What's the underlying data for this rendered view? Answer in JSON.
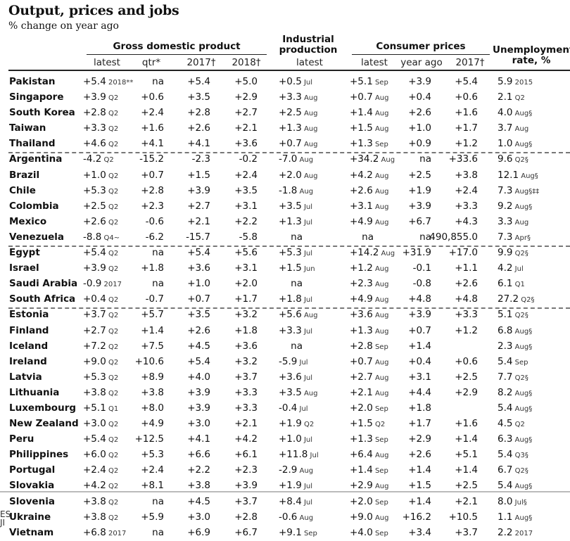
{
  "title": "Output, prices and jobs",
  "subtitle": "% change on year ago",
  "groups": {
    "gdp": "Gross domestic product",
    "industrial": [
      "Industrial",
      "production"
    ],
    "cpi": "Consumer prices",
    "unemp": [
      "Unemployment",
      "rate, %"
    ]
  },
  "subheaders": {
    "gdp_latest": "latest",
    "gdp_qtr": "qtr*",
    "gdp_2017": "2017†",
    "gdp_2018": "2018†",
    "ip_latest": "latest",
    "cpi_latest": "latest",
    "cpi_yearago": "year ago",
    "cpi_2017": "2017†"
  },
  "edge_text": [
    "ES",
    "JI"
  ],
  "rows": [
    {
      "name": "Pakistan",
      "gdp": "+5.4",
      "gdp_s": "2018**",
      "qtr": "na",
      "g17": "+5.4",
      "g18": "+5.0",
      "ip": "+0.5",
      "ip_s": "Jul",
      "cpi": "+5.1",
      "cpi_s": "Sep",
      "ya": "+3.9",
      "c17": "+5.4",
      "un": "5.9",
      "un_s": "2015",
      "dash": false
    },
    {
      "name": "Singapore",
      "gdp": "+3.9",
      "gdp_s": "Q2",
      "qtr": "+0.6",
      "g17": "+3.5",
      "g18": "+2.9",
      "ip": "+3.3",
      "ip_s": "Aug",
      "cpi": "+0.7",
      "cpi_s": "Aug",
      "ya": "+0.4",
      "c17": "+0.6",
      "un": "2.1",
      "un_s": "Q2",
      "dash": false
    },
    {
      "name": "South Korea",
      "gdp": "+2.8",
      "gdp_s": "Q2",
      "qtr": "+2.4",
      "g17": "+2.8",
      "g18": "+2.7",
      "ip": "+2.5",
      "ip_s": "Aug",
      "cpi": "+1.4",
      "cpi_s": "Aug",
      "ya": "+2.6",
      "c17": "+1.6",
      "un": "4.0",
      "un_s": "Aug§",
      "dash": false
    },
    {
      "name": "Taiwan",
      "gdp": "+3.3",
      "gdp_s": "Q2",
      "qtr": "+1.6",
      "g17": "+2.6",
      "g18": "+2.1",
      "ip": "+1.3",
      "ip_s": "Aug",
      "cpi": "+1.5",
      "cpi_s": "Aug",
      "ya": "+1.0",
      "c17": "+1.7",
      "un": "3.7",
      "un_s": "Aug",
      "dash": false
    },
    {
      "name": "Thailand",
      "gdp": "+4.6",
      "gdp_s": "Q2",
      "qtr": "+4.1",
      "g17": "+4.1",
      "g18": "+3.6",
      "ip": "+0.7",
      "ip_s": "Aug",
      "cpi": "+1.3",
      "cpi_s": "Sep",
      "ya": "+0.9",
      "c17": "+1.2",
      "un": "1.0",
      "un_s": "Aug§",
      "dash": true
    },
    {
      "name": "Argentina",
      "gdp": "-4.2",
      "gdp_s": "Q2",
      "qtr": "-15.2",
      "g17": "-2.3",
      "g18": "-0.2",
      "ip": "-7.0",
      "ip_s": "Aug",
      "cpi": "+34.2",
      "cpi_s": "Aug",
      "ya": "na",
      "c17": "+33.6",
      "un": "9.6",
      "un_s": "Q2§",
      "dash": false
    },
    {
      "name": "Brazil",
      "gdp": "+1.0",
      "gdp_s": "Q2",
      "qtr": "+0.7",
      "g17": "+1.5",
      "g18": "+2.4",
      "ip": "+2.0",
      "ip_s": "Aug",
      "cpi": "+4.2",
      "cpi_s": "Aug",
      "ya": "+2.5",
      "c17": "+3.8",
      "un": "12.1",
      "un_s": "Aug§",
      "dash": false
    },
    {
      "name": "Chile",
      "gdp": "+5.3",
      "gdp_s": "Q2",
      "qtr": "+2.8",
      "g17": "+3.9",
      "g18": "+3.5",
      "ip": "-1.8",
      "ip_s": "Aug",
      "cpi": "+2.6",
      "cpi_s": "Aug",
      "ya": "+1.9",
      "c17": "+2.4",
      "un": "7.3",
      "un_s": "Aug§‡‡",
      "dash": false
    },
    {
      "name": "Colombia",
      "gdp": "+2.5",
      "gdp_s": "Q2",
      "qtr": "+2.3",
      "g17": "+2.7",
      "g18": "+3.1",
      "ip": "+3.5",
      "ip_s": "Jul",
      "cpi": "+3.1",
      "cpi_s": "Aug",
      "ya": "+3.9",
      "c17": "+3.3",
      "un": "9.2",
      "un_s": "Aug§",
      "dash": false
    },
    {
      "name": "Mexico",
      "gdp": "+2.6",
      "gdp_s": "Q2",
      "qtr": "-0.6",
      "g17": "+2.1",
      "g18": "+2.2",
      "ip": "+1.3",
      "ip_s": "Jul",
      "cpi": "+4.9",
      "cpi_s": "Aug",
      "ya": "+6.7",
      "c17": "+4.3",
      "un": "3.3",
      "un_s": "Aug",
      "dash": false
    },
    {
      "name": "Venezuela",
      "gdp": "-8.8",
      "gdp_s": "Q4~",
      "qtr": "-6.2",
      "g17": "-15.7",
      "g18": "-5.8",
      "ip": "na",
      "ip_s": "",
      "cpi": "na",
      "cpi_s": "",
      "ya": "na",
      "c17": "490,855.0",
      "un": "7.3",
      "un_s": "Apr§",
      "dash": true
    },
    {
      "name": "Egypt",
      "gdp": "+5.4",
      "gdp_s": "Q2",
      "qtr": "na",
      "g17": "+5.4",
      "g18": "+5.6",
      "ip": "+5.3",
      "ip_s": "Jul",
      "cpi": "+14.2",
      "cpi_s": "Aug",
      "ya": "+31.9",
      "c17": "+17.0",
      "un": "9.9",
      "un_s": "Q2§",
      "dash": false
    },
    {
      "name": "Israel",
      "gdp": "+3.9",
      "gdp_s": "Q2",
      "qtr": "+1.8",
      "g17": "+3.6",
      "g18": "+3.1",
      "ip": "+1.5",
      "ip_s": "Jun",
      "cpi": "+1.2",
      "cpi_s": "Aug",
      "ya": "-0.1",
      "c17": "+1.1",
      "un": "4.2",
      "un_s": "Jul",
      "dash": false
    },
    {
      "name": "Saudi Arabia",
      "gdp": "-0.9",
      "gdp_s": "2017",
      "qtr": "na",
      "g17": "+1.0",
      "g18": "+2.0",
      "ip": "na",
      "ip_s": "",
      "cpi": "+2.3",
      "cpi_s": "Aug",
      "ya": "-0.8",
      "c17": "+2.6",
      "un": "6.1",
      "un_s": "Q1",
      "dash": false
    },
    {
      "name": "South Africa",
      "gdp": "+0.4",
      "gdp_s": "Q2",
      "qtr": "-0.7",
      "g17": "+0.7",
      "g18": "+1.7",
      "ip": "+1.8",
      "ip_s": "Jul",
      "cpi": "+4.9",
      "cpi_s": "Aug",
      "ya": "+4.8",
      "c17": "+4.8",
      "un": "27.2",
      "un_s": "Q2§",
      "dash": true
    },
    {
      "name": "Estonia",
      "gdp": "+3.7",
      "gdp_s": "Q2",
      "qtr": "+5.7",
      "g17": "+3.5",
      "g18": "+3.2",
      "ip": "+5.6",
      "ip_s": "Aug",
      "cpi": "+3.6",
      "cpi_s": "Aug",
      "ya": "+3.9",
      "c17": "+3.3",
      "un": "5.1",
      "un_s": "Q2§",
      "dash": false
    },
    {
      "name": "Finland",
      "gdp": "+2.7",
      "gdp_s": "Q2",
      "qtr": "+1.4",
      "g17": "+2.6",
      "g18": "+1.8",
      "ip": "+3.3",
      "ip_s": "Jul",
      "cpi": "+1.3",
      "cpi_s": "Aug",
      "ya": "+0.7",
      "c17": "+1.2",
      "un": "6.8",
      "un_s": "Aug§",
      "dash": false
    },
    {
      "name": "Iceland",
      "gdp": "+7.2",
      "gdp_s": "Q2",
      "qtr": "+7.5",
      "g17": "+4.5",
      "g18": "+3.6",
      "ip": "na",
      "ip_s": "",
      "cpi": "+2.8",
      "cpi_s": "Sep",
      "ya": "+1.4",
      "c17": "",
      "un": "2.3",
      "un_s": "Aug§",
      "dash": false
    },
    {
      "name": "Ireland",
      "gdp": "+9.0",
      "gdp_s": "Q2",
      "qtr": "+10.6",
      "g17": "+5.4",
      "g18": "+3.2",
      "ip": "-5.9",
      "ip_s": "Jul",
      "cpi": "+0.7",
      "cpi_s": "Aug",
      "ya": "+0.4",
      "c17": "+0.6",
      "un": "5.4",
      "un_s": "Sep",
      "dash": false
    },
    {
      "name": "Latvia",
      "gdp": "+5.3",
      "gdp_s": "Q2",
      "qtr": "+8.9",
      "g17": "+4.0",
      "g18": "+3.7",
      "ip": "+3.6",
      "ip_s": "Jul",
      "cpi": "+2.7",
      "cpi_s": "Aug",
      "ya": "+3.1",
      "c17": "+2.5",
      "un": "7.7",
      "un_s": "Q2§",
      "dash": false
    },
    {
      "name": "Lithuania",
      "gdp": "+3.8",
      "gdp_s": "Q2",
      "qtr": "+3.8",
      "g17": "+3.9",
      "g18": "+3.3",
      "ip": "+3.5",
      "ip_s": "Aug",
      "cpi": "+2.1",
      "cpi_s": "Aug",
      "ya": "+4.4",
      "c17": "+2.9",
      "un": "8.2",
      "un_s": "Aug§",
      "dash": false
    },
    {
      "name": "Luxembourg",
      "gdp": "+5.1",
      "gdp_s": "Q1",
      "qtr": "+8.0",
      "g17": "+3.9",
      "g18": "+3.3",
      "ip": "-0.4",
      "ip_s": "Jul",
      "cpi": "+2.0",
      "cpi_s": "Sep",
      "ya": "+1.8",
      "c17": "",
      "un": "5.4",
      "un_s": "Aug§",
      "dash": false
    },
    {
      "name": "New Zealand",
      "gdp": "+3.0",
      "gdp_s": "Q2",
      "qtr": "+4.9",
      "g17": "+3.0",
      "g18": "+2.1",
      "ip": "+1.9",
      "ip_s": "Q2",
      "cpi": "+1.5",
      "cpi_s": "Q2",
      "ya": "+1.7",
      "c17": "+1.6",
      "un": "4.5",
      "un_s": "Q2",
      "dash": false
    },
    {
      "name": "Peru",
      "gdp": "+5.4",
      "gdp_s": "Q2",
      "qtr": "+12.5",
      "g17": "+4.1",
      "g18": "+4.2",
      "ip": "+1.0",
      "ip_s": "Jul",
      "cpi": "+1.3",
      "cpi_s": "Sep",
      "ya": "+2.9",
      "c17": "+1.4",
      "un": "6.3",
      "un_s": "Aug§",
      "dash": false
    },
    {
      "name": "Philippines",
      "gdp": "+6.0",
      "gdp_s": "Q2",
      "qtr": "+5.3",
      "g17": "+6.6",
      "g18": "+6.1",
      "ip": "+11.8",
      "ip_s": "Jul",
      "cpi": "+6.4",
      "cpi_s": "Aug",
      "ya": "+2.6",
      "c17": "+5.1",
      "un": "5.4",
      "un_s": "Q3§",
      "dash": false
    },
    {
      "name": "Portugal",
      "gdp": "+2.4",
      "gdp_s": "Q2",
      "qtr": "+2.4",
      "g17": "+2.2",
      "g18": "+2.3",
      "ip": "-2.9",
      "ip_s": "Aug",
      "cpi": "+1.4",
      "cpi_s": "Sep",
      "ya": "+1.4",
      "c17": "+1.4",
      "un": "6.7",
      "un_s": "Q2§",
      "dash": false
    },
    {
      "name": "Slovakia",
      "gdp": "+4.2",
      "gdp_s": "Q2",
      "qtr": "+8.1",
      "g17": "+3.8",
      "g18": "+3.9",
      "ip": "+1.9",
      "ip_s": "Jul",
      "cpi": "+2.9",
      "cpi_s": "Aug",
      "ya": "+1.5",
      "c17": "+2.5",
      "un": "5.4",
      "un_s": "Aug§",
      "dash": false
    },
    {
      "name": "Slovenia",
      "gdp": "+3.8",
      "gdp_s": "Q2",
      "qtr": "na",
      "g17": "+4.5",
      "g18": "+3.7",
      "ip": "+8.4",
      "ip_s": "Jul",
      "cpi": "+2.0",
      "cpi_s": "Sep",
      "ya": "+1.4",
      "c17": "+2.1",
      "un": "8.0",
      "un_s": "Jul§",
      "dash": false
    },
    {
      "name": "Ukraine",
      "gdp": "+3.8",
      "gdp_s": "Q2",
      "qtr": "+5.9",
      "g17": "+3.0",
      "g18": "+2.8",
      "ip": "-0.6",
      "ip_s": "Aug",
      "cpi": "+9.0",
      "cpi_s": "Aug",
      "ya": "+16.2",
      "c17": "+10.5",
      "un": "1.1",
      "un_s": "Aug§",
      "dash": false
    },
    {
      "name": "Vietnam",
      "gdp": "+6.8",
      "gdp_s": "2017",
      "qtr": "na",
      "g17": "+6.9",
      "g18": "+6.7",
      "ip": "+9.1",
      "ip_s": "Sep",
      "cpi": "+4.0",
      "cpi_s": "Sep",
      "ya": "+3.4",
      "c17": "+3.7",
      "un": "2.2",
      "un_s": "2017",
      "dash": false
    }
  ]
}
